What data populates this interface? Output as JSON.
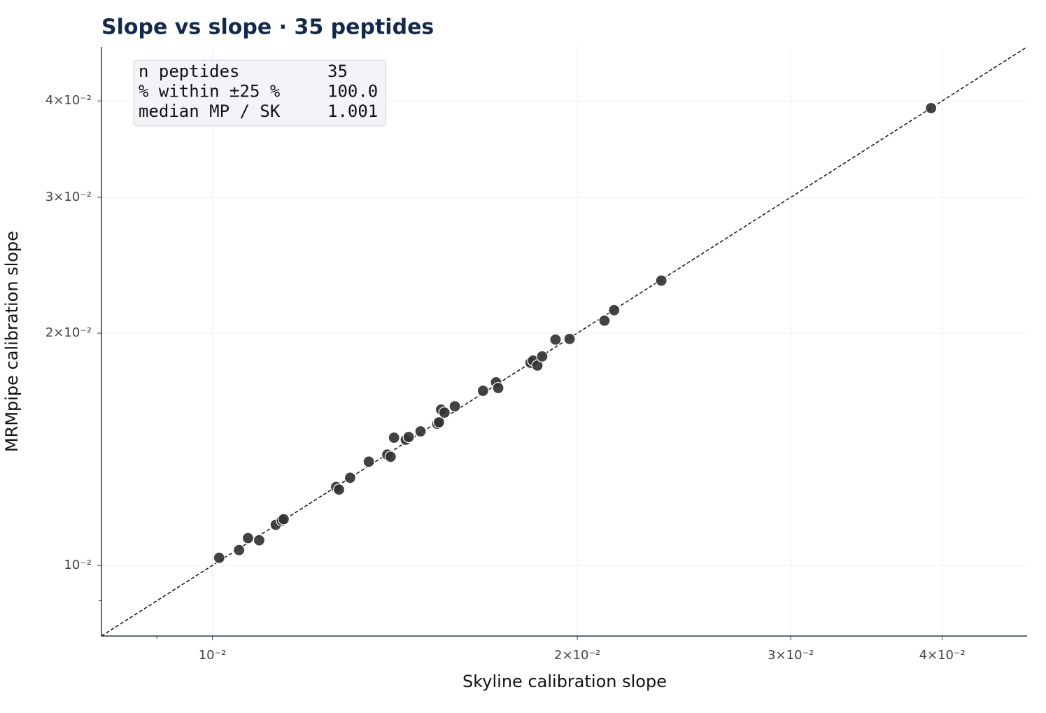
{
  "chart_data": {
    "type": "scatter",
    "title": "Slope vs slope  ·  35 peptides",
    "x_label": "Skyline calibration slope",
    "y_label": "MRMpipe calibration slope",
    "log_x": true,
    "log_y": true,
    "grid": true,
    "identity_line": true,
    "color": "#333333",
    "xlim": [
      0.0081,
      0.047
    ],
    "ylim": [
      0.0081,
      0.047
    ],
    "xticks": [
      {
        "value": 0.01,
        "label": "10⁻²"
      },
      {
        "value": 0.02,
        "label": "2×10⁻²"
      },
      {
        "value": 0.03,
        "label": "3×10⁻²"
      },
      {
        "value": 0.04,
        "label": "4×10⁻²"
      }
    ],
    "yticks": [
      {
        "value": 0.01,
        "label": "10⁻²"
      },
      {
        "value": 0.02,
        "label": "2×10⁻²"
      },
      {
        "value": 0.03,
        "label": "3×10⁻²"
      },
      {
        "value": 0.04,
        "label": "4×10⁻²"
      }
    ],
    "xminor": [
      0.009
    ],
    "yminor": [
      0.009
    ],
    "stats": [
      [
        "n peptides",
        "35"
      ],
      [
        "% within ±25 %",
        "100.0"
      ],
      [
        "median MP / SK",
        "1.001"
      ]
    ],
    "x": [
      0.01013,
      0.01052,
      0.0107,
      0.01093,
      0.01128,
      0.01141,
      0.01145,
      0.01265,
      0.01272,
      0.01299,
      0.01346,
      0.01394,
      0.01403,
      0.01412,
      0.01444,
      0.01452,
      0.01485,
      0.01533,
      0.01538,
      0.01544,
      0.01554,
      0.01585,
      0.01672,
      0.01714,
      0.01721,
      0.0183,
      0.01839,
      0.01854,
      0.01871,
      0.01919,
      0.01971,
      0.02106,
      0.02145,
      0.02346,
      0.03916
    ],
    "y": [
      0.01023,
      0.01047,
      0.01085,
      0.01078,
      0.01129,
      0.01143,
      0.01148,
      0.01264,
      0.01254,
      0.01299,
      0.01363,
      0.01392,
      0.01383,
      0.01464,
      0.01455,
      0.01467,
      0.01492,
      0.01526,
      0.01533,
      0.01592,
      0.01578,
      0.01608,
      0.01684,
      0.01727,
      0.01698,
      0.01831,
      0.01843,
      0.01816,
      0.01866,
      0.01962,
      0.01966,
      0.02076,
      0.02142,
      0.0234,
      0.03915
    ]
  }
}
